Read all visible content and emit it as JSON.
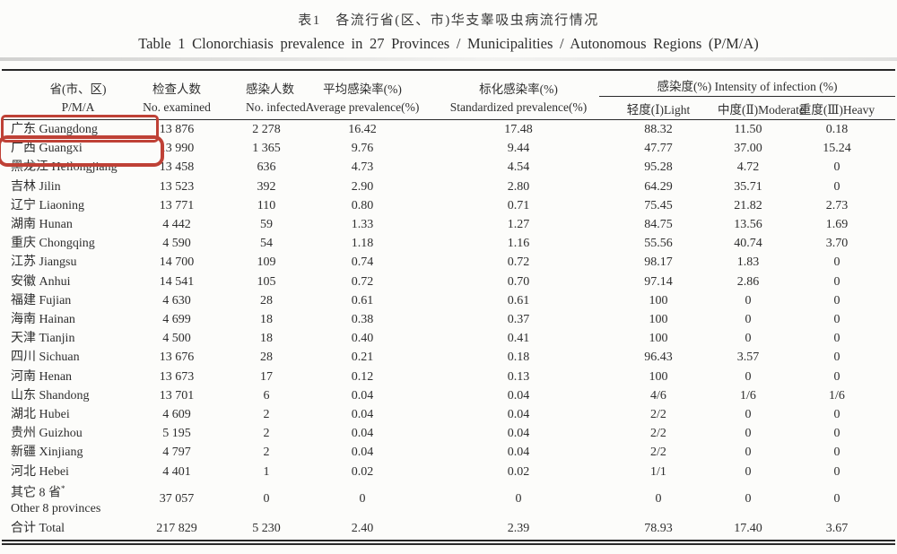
{
  "titles": {
    "zh": "表1　各流行省(区、市)华支睾吸虫病流行情况",
    "en": "Table 1   Clonorchiasis prevalence in 27 Provinces / Municipalities / Autonomous Regions (P/M/A)"
  },
  "annotation": {
    "color": "#bf4136",
    "boxes": [
      "guangdong-row",
      "guangxi-row"
    ]
  },
  "table": {
    "columns": [
      {
        "zh": "省(市、区)",
        "en": "P/M/A"
      },
      {
        "zh": "检查人数",
        "en": "No. examined"
      },
      {
        "zh": "感染人数",
        "en": "No. infected"
      },
      {
        "zh": "平均感染率(%)",
        "en": "Average prevalence(%)"
      },
      {
        "zh": "标化感染率(%)",
        "en": "Standardized prevalence(%)"
      }
    ],
    "group": {
      "label": "感染度(%)  Intensity of infection (%)",
      "sub": [
        "轻度(Ⅰ)Light",
        "中度(Ⅱ)Moderate",
        "重度(Ⅲ)Heavy"
      ]
    },
    "rows": [
      {
        "zh": "广东",
        "en": "Guangdong",
        "values": [
          "13 876",
          "2 278",
          "16.42",
          "17.48",
          "88.32",
          "11.50",
          "0.18"
        ],
        "highlight": "guangdong"
      },
      {
        "zh": "广西",
        "en": "Guangxi",
        "values": [
          "13 990",
          "1 365",
          "9.76",
          "9.44",
          "47.77",
          "37.00",
          "15.24"
        ],
        "highlight": "guangxi"
      },
      {
        "zh": "黑龙江",
        "en": "Heilongjiang",
        "values": [
          "13 458",
          "636",
          "4.73",
          "4.54",
          "95.28",
          "4.72",
          "0"
        ]
      },
      {
        "zh": "吉林",
        "en": "Jilin",
        "values": [
          "13 523",
          "392",
          "2.90",
          "2.80",
          "64.29",
          "35.71",
          "0"
        ]
      },
      {
        "zh": "辽宁",
        "en": "Liaoning",
        "values": [
          "13 771",
          "110",
          "0.80",
          "0.71",
          "75.45",
          "21.82",
          "2.73"
        ]
      },
      {
        "zh": "湖南",
        "en": "Hunan",
        "values": [
          "4 442",
          "59",
          "1.33",
          "1.27",
          "84.75",
          "13.56",
          "1.69"
        ]
      },
      {
        "zh": "重庆",
        "en": "Chongqing",
        "values": [
          "4 590",
          "54",
          "1.18",
          "1.16",
          "55.56",
          "40.74",
          "3.70"
        ]
      },
      {
        "zh": "江苏",
        "en": "Jiangsu",
        "values": [
          "14 700",
          "109",
          "0.74",
          "0.72",
          "98.17",
          "1.83",
          "0"
        ]
      },
      {
        "zh": "安徽",
        "en": "Anhui",
        "values": [
          "14 541",
          "105",
          "0.72",
          "0.70",
          "97.14",
          "2.86",
          "0"
        ]
      },
      {
        "zh": "福建",
        "en": "Fujian",
        "values": [
          "4 630",
          "28",
          "0.61",
          "0.61",
          "100",
          "0",
          "0"
        ]
      },
      {
        "zh": "海南",
        "en": "Hainan",
        "values": [
          "4 699",
          "18",
          "0.38",
          "0.37",
          "100",
          "0",
          "0"
        ]
      },
      {
        "zh": "天津",
        "en": "Tianjin",
        "values": [
          "4 500",
          "18",
          "0.40",
          "0.41",
          "100",
          "0",
          "0"
        ]
      },
      {
        "zh": "四川",
        "en": "Sichuan",
        "values": [
          "13 676",
          "28",
          "0.21",
          "0.18",
          "96.43",
          "3.57",
          "0"
        ]
      },
      {
        "zh": "河南",
        "en": "Henan",
        "values": [
          "13 673",
          "17",
          "0.12",
          "0.13",
          "100",
          "0",
          "0"
        ]
      },
      {
        "zh": "山东",
        "en": "Shandong",
        "values": [
          "13 701",
          "6",
          "0.04",
          "0.04",
          "4/6",
          "1/6",
          "1/6"
        ]
      },
      {
        "zh": "湖北",
        "en": "Hubei",
        "values": [
          "4 609",
          "2",
          "0.04",
          "0.04",
          "2/2",
          "0",
          "0"
        ]
      },
      {
        "zh": "贵州",
        "en": "Guizhou",
        "values": [
          "5 195",
          "2",
          "0.04",
          "0.04",
          "2/2",
          "0",
          "0"
        ]
      },
      {
        "zh": "新疆",
        "en": "Xinjiang",
        "values": [
          "4 797",
          "2",
          "0.04",
          "0.04",
          "2/2",
          "0",
          "0"
        ]
      },
      {
        "zh": "河北",
        "en": "Hebei",
        "values": [
          "4 401",
          "1",
          "0.02",
          "0.02",
          "1/1",
          "0",
          "0"
        ]
      },
      {
        "zh": "其它 8 省",
        "en": "Other 8 provinces",
        "sup": "*",
        "two_line": true,
        "values": [
          "37 057",
          "0",
          "0",
          "0",
          "0",
          "0",
          "0"
        ]
      },
      {
        "zh": "合计",
        "en": "Total",
        "total": true,
        "values": [
          "217 829",
          "5 230",
          "2.40",
          "2.39",
          "78.93",
          "17.40",
          "3.67"
        ]
      }
    ]
  }
}
